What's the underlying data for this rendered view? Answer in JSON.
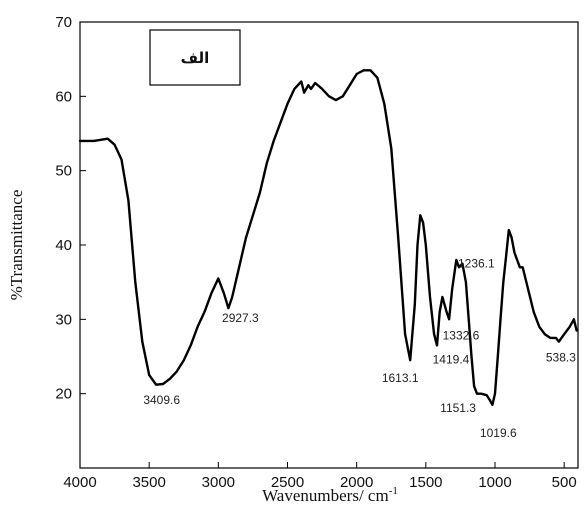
{
  "chart_data": {
    "type": "line",
    "title": "",
    "xlabel": "Wavenumbers/ cm",
    "xlabel_sup": "-1",
    "ylabel": "%Transmittance",
    "xlim": [
      4000,
      400
    ],
    "ylim": [
      10,
      70
    ],
    "x_reversed": true,
    "grid": false,
    "legend_position": "top-left",
    "legend_label": "الف",
    "line_color": "#000000",
    "x_ticks": [
      4000,
      3500,
      3000,
      2500,
      2000,
      1500,
      1000,
      500
    ],
    "x_tick_labels": [
      "4000",
      "3500",
      "3000",
      "2500",
      "2000",
      "1500",
      "1000",
      "500"
    ],
    "y_ticks": [
      20,
      30,
      40,
      50,
      60,
      70
    ],
    "y_tick_labels": [
      "20",
      "30",
      "40",
      "50",
      "60",
      "70"
    ],
    "series": [
      {
        "x": [
          4000,
          3900,
          3800,
          3750,
          3700,
          3650,
          3600,
          3550,
          3500,
          3450,
          3400,
          3350,
          3300,
          3250,
          3200,
          3150,
          3100,
          3050,
          3000,
          2960,
          2927,
          2900,
          2850,
          2800,
          2750,
          2700,
          2650,
          2600,
          2550,
          2500,
          2450,
          2400,
          2380,
          2350,
          2330,
          2300,
          2250,
          2200,
          2150,
          2100,
          2050,
          2000,
          1950,
          1900,
          1850,
          1800,
          1750,
          1700,
          1650,
          1613,
          1580,
          1560,
          1540,
          1520,
          1500,
          1470,
          1440,
          1419,
          1400,
          1380,
          1350,
          1332,
          1310,
          1280,
          1260,
          1236,
          1210,
          1190,
          1170,
          1151,
          1130,
          1100,
          1060,
          1040,
          1019,
          1000,
          980,
          960,
          940,
          920,
          900,
          880,
          860,
          840,
          820,
          800,
          760,
          720,
          680,
          640,
          600,
          560,
          538,
          500,
          460,
          430,
          410
        ],
        "y": [
          54,
          54,
          54.3,
          53.5,
          51.5,
          46,
          35,
          27,
          22.5,
          21.2,
          21.3,
          22,
          23,
          24.5,
          26.5,
          29,
          31,
          33.5,
          35.5,
          33.5,
          31.5,
          33,
          37,
          41,
          44,
          47,
          51,
          54,
          56.5,
          59,
          61,
          62,
          60.5,
          61.5,
          61,
          61.8,
          61,
          60,
          59.5,
          60,
          61.5,
          63,
          63.5,
          63.5,
          62.5,
          59,
          53,
          41,
          28,
          24.5,
          32,
          40,
          44,
          43,
          40,
          33,
          28,
          26.5,
          31,
          33,
          31,
          30,
          34,
          38,
          37,
          37.5,
          35,
          30,
          25,
          21,
          20,
          20,
          19.8,
          19.2,
          18.5,
          20,
          25,
          30,
          35,
          38.5,
          42,
          41,
          39,
          38,
          37,
          37,
          34,
          31,
          29,
          28,
          27.5,
          27.5,
          27,
          28,
          29,
          30,
          28.5
        ]
      }
    ],
    "annotations": [
      {
        "label": "3409.6",
        "x": 3409.6,
        "y": 21.3
      },
      {
        "label": "2927.3",
        "x": 2927.3,
        "y": 31.5
      },
      {
        "label": "1613.1",
        "x": 1613.1,
        "y": 24.5
      },
      {
        "label": "1419.4",
        "x": 1419.4,
        "y": 26.5
      },
      {
        "label": "1332.6",
        "x": 1332.6,
        "y": 30
      },
      {
        "label": "1236.1",
        "x": 1236.1,
        "y": 37.5
      },
      {
        "label": "1151.3",
        "x": 1151.3,
        "y": 21
      },
      {
        "label": "1019.6",
        "x": 1019.6,
        "y": 18.5
      },
      {
        "label": "538.3",
        "x": 538.3,
        "y": 27
      }
    ]
  }
}
